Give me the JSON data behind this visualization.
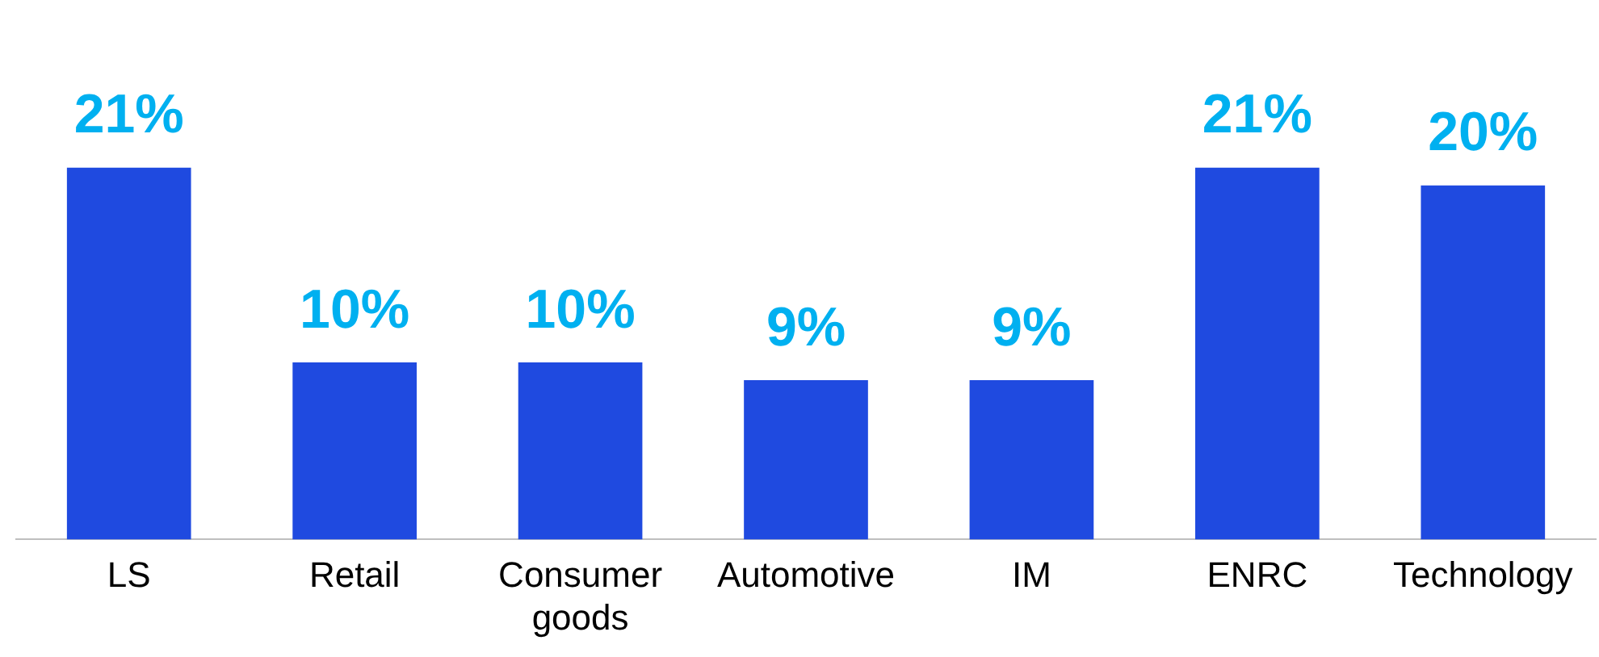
{
  "chart_data": {
    "type": "bar",
    "categories": [
      "LS",
      "Retail",
      "Consumer goods",
      "Automotive",
      "IM",
      "ENRC",
      "Technology"
    ],
    "values": [
      21,
      10,
      10,
      9,
      9,
      21,
      20
    ],
    "value_labels": [
      "21%",
      "10%",
      "10%",
      "9%",
      "9%",
      "21%",
      "20%"
    ],
    "color": "#1f4ae0",
    "tick_labels": "x",
    "grid": false,
    "legend": false
  }
}
